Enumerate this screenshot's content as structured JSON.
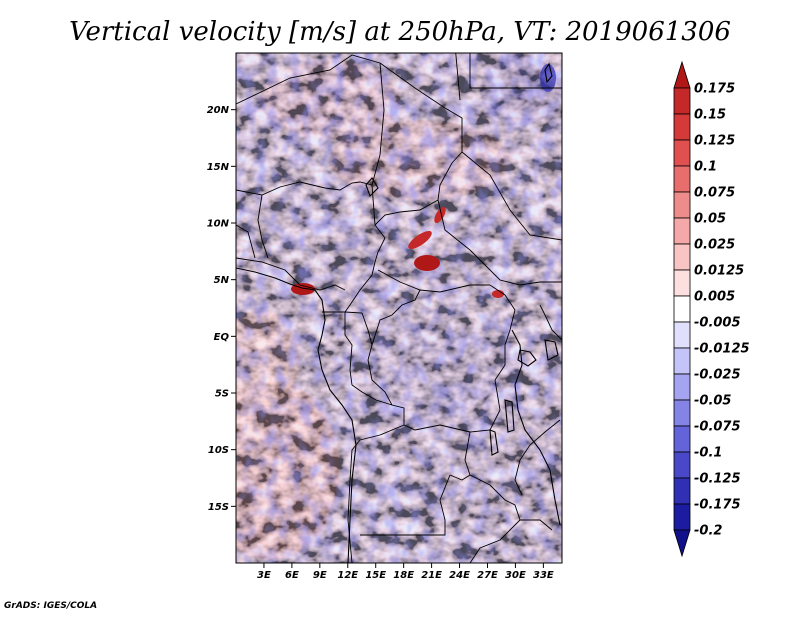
{
  "chart_data": {
    "type": "heatmap",
    "title": "Vertical velocity [m/s] at 250hPa, VT: 2019061306",
    "variable": "Vertical velocity",
    "units": "m/s",
    "level": "250hPa",
    "valid_time": "2019061306",
    "xlabel": "",
    "ylabel": "",
    "x_range_deg": [
      0,
      35
    ],
    "y_range_deg": [
      -20,
      25
    ],
    "x_ticks": [
      {
        "value": 3,
        "label": "3E"
      },
      {
        "value": 6,
        "label": "6E"
      },
      {
        "value": 9,
        "label": "9E"
      },
      {
        "value": 12,
        "label": "12E"
      },
      {
        "value": 15,
        "label": "15E"
      },
      {
        "value": 18,
        "label": "18E"
      },
      {
        "value": 21,
        "label": "21E"
      },
      {
        "value": 24,
        "label": "24E"
      },
      {
        "value": 27,
        "label": "27E"
      },
      {
        "value": 30,
        "label": "30E"
      },
      {
        "value": 33,
        "label": "33E"
      }
    ],
    "y_ticks": [
      {
        "value": 20,
        "label": "20N"
      },
      {
        "value": 15,
        "label": "15N"
      },
      {
        "value": 10,
        "label": "10N"
      },
      {
        "value": 5,
        "label": "5N"
      },
      {
        "value": 0,
        "label": "EQ"
      },
      {
        "value": -5,
        "label": "5S"
      },
      {
        "value": -10,
        "label": "10S"
      },
      {
        "value": -15,
        "label": "15S"
      }
    ],
    "colorbar": {
      "labels": [
        "0.175",
        "0.15",
        "0.125",
        "0.1",
        "0.075",
        "0.05",
        "0.025",
        "0.0125",
        "0.005",
        "-0.005",
        "-0.0125",
        "-0.025",
        "-0.05",
        "-0.075",
        "-0.1",
        "-0.125",
        "-0.175",
        "-0.2"
      ],
      "colors": [
        "#b01818",
        "#c42828",
        "#d43a3a",
        "#e05050",
        "#e86e6e",
        "#ee8c8c",
        "#f4a8a8",
        "#f8c4c4",
        "#fce0e0",
        "#ffffff",
        "#e0e0fc",
        "#c4c4f8",
        "#a4a4f0",
        "#8484e6",
        "#6464da",
        "#4848c8",
        "#3030b4",
        "#1c1ca0",
        "#10108a"
      ]
    }
  },
  "footer": {
    "text": "GrADS: IGES/COLA"
  }
}
